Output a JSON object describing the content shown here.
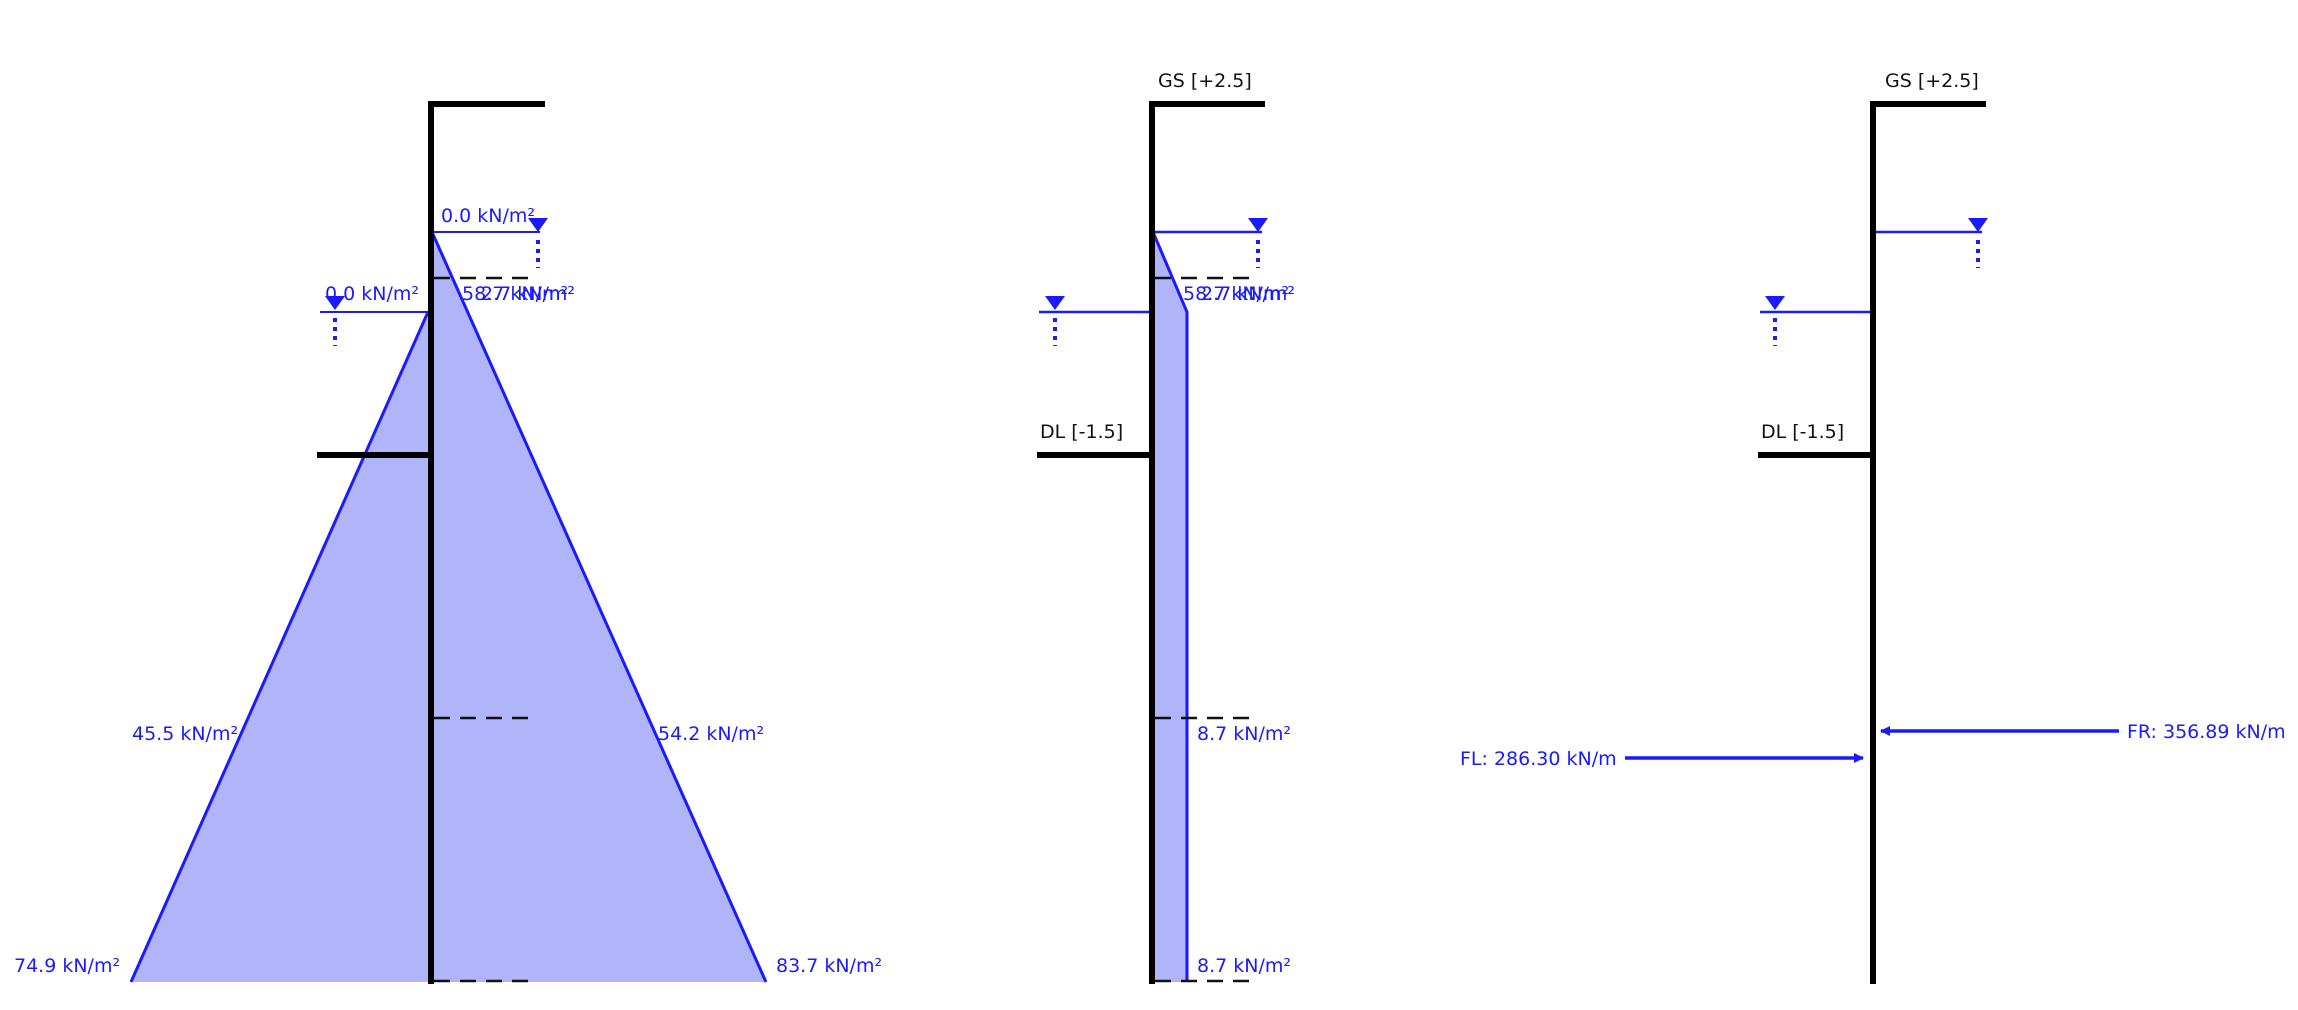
{
  "colors": {
    "pressure": "#1a1aff",
    "pressure_fill": "#b0b4f8",
    "wall": "#000000",
    "text": "#111111"
  },
  "icons": {
    "water_table": "water-table-icon",
    "force_arrow": "arrow-icon"
  },
  "panels": [
    {
      "id": "water-pressure",
      "labels": {
        "wt_right_top": "0.0 kN/m²",
        "wt_left_top": "0.0 kN/m²",
        "right_layer": "58.7 kN/m²",
        "right_layer_overlap": "2.7 kN/m²",
        "left_mid": "45.5 kN/m²",
        "right_mid": "54.2 kN/m²",
        "left_bottom": "74.9 kN/m²",
        "right_bottom": "83.7 kN/m²"
      }
    },
    {
      "id": "net-pressure",
      "labels": {
        "ground_surface": "GS [+2.5]",
        "dredge_level": "DL [-1.5]",
        "layer": "58.7 kN/m²",
        "layer_overlap": "2.7 kN/m²",
        "mid": "8.7 kN/m²",
        "bottom": "8.7 kN/m²"
      }
    },
    {
      "id": "resultant-forces",
      "labels": {
        "ground_surface": "GS [+2.5]",
        "dredge_level": "DL [-1.5]",
        "force_left": "FL: 286.30 kN/m",
        "force_right": "FR: 356.89 kN/m"
      }
    }
  ]
}
